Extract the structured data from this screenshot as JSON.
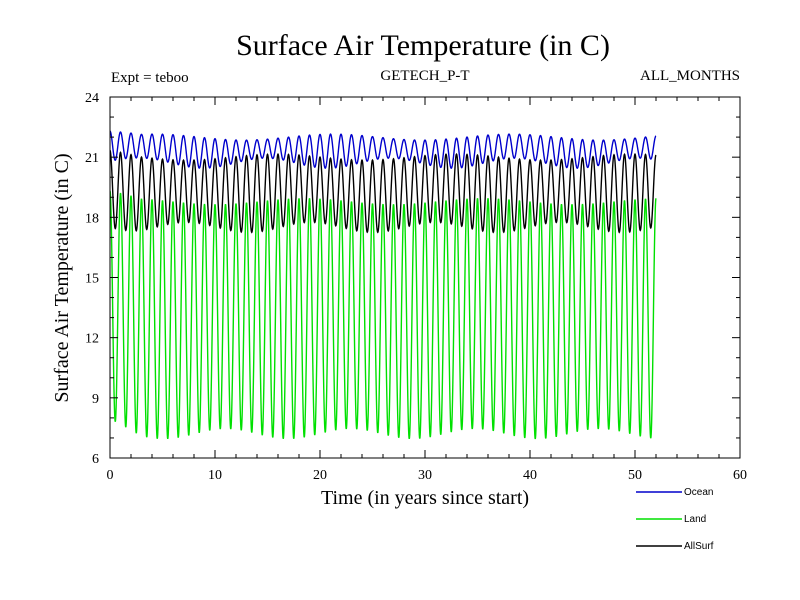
{
  "chart_data": {
    "type": "line",
    "title": "Surface Air Temperature (in C)",
    "subtitle_left": "Expt = teboo",
    "subtitle_center": "GETECH_P-T",
    "subtitle_right": "ALL_MONTHS",
    "xlabel": "Time (in years since start)",
    "ylabel": "Surface Air Temperature (in C)",
    "xlim": [
      0,
      60
    ],
    "ylim": [
      6,
      24
    ],
    "xticks": [
      0,
      10,
      20,
      30,
      40,
      50,
      60
    ],
    "yticks": [
      6,
      9,
      12,
      15,
      18,
      21,
      24
    ],
    "x_start": 0,
    "x_end": 52,
    "cycles_per_year": 1,
    "samples_per_year": 12,
    "grid": false,
    "legend_position": "bottom-right",
    "series": [
      {
        "name": "Ocean",
        "color": "#0000cc",
        "min": 20.7,
        "max": 22.0,
        "min_first": 20.8,
        "max_first": 22.3
      },
      {
        "name": "Land",
        "color": "#00e000",
        "min": 7.2,
        "max": 18.8,
        "min_first": 7.7,
        "max_first": 19.2
      },
      {
        "name": "AllSurf",
        "color": "#000000",
        "min": 17.5,
        "max": 21.0,
        "min_first": 17.7,
        "max_first": 21.2
      }
    ]
  }
}
